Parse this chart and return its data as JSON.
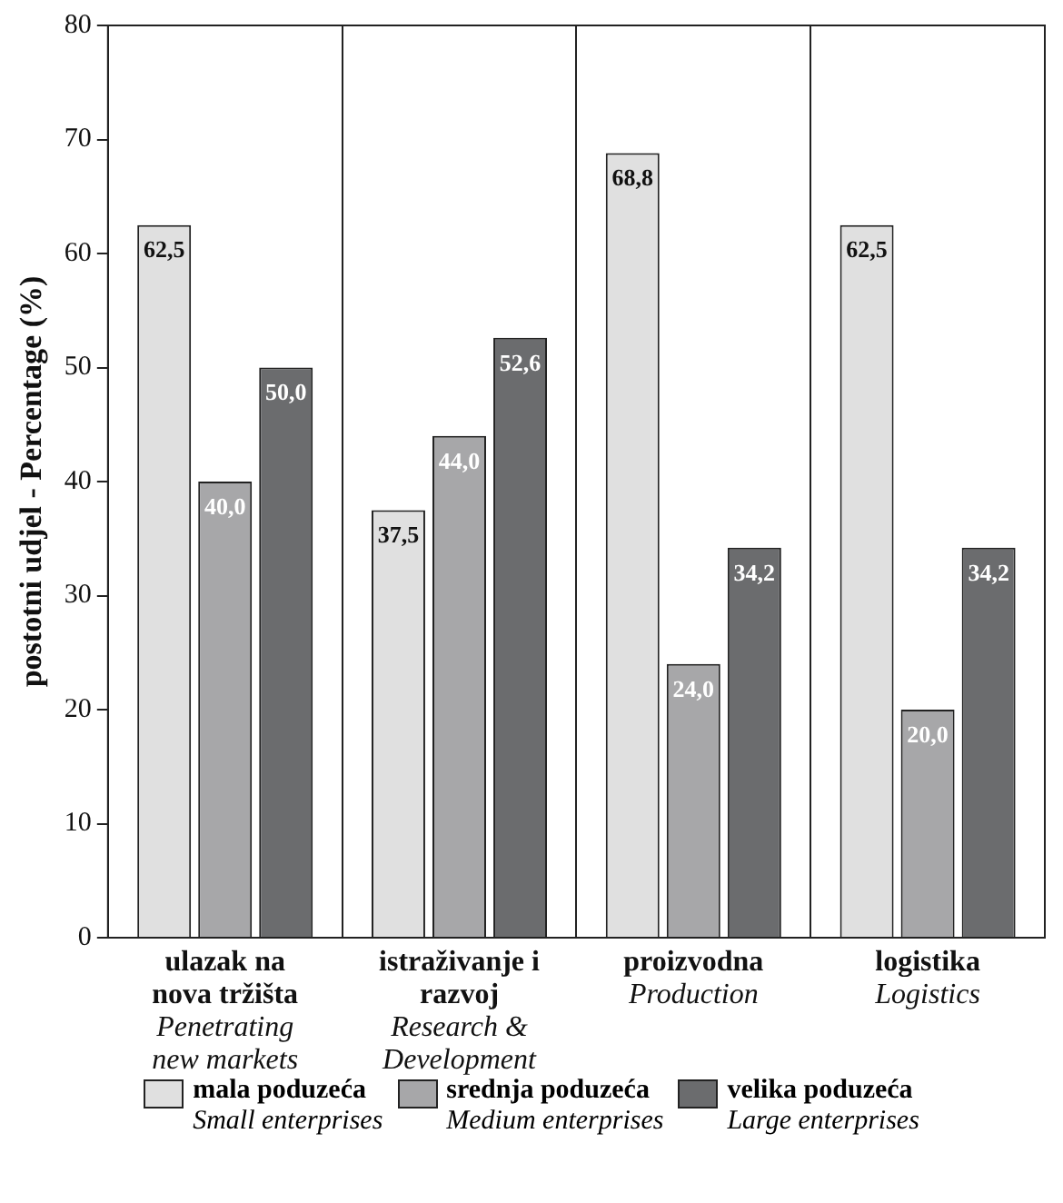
{
  "chart_data": {
    "type": "bar",
    "ylabel": "postotni udjel - Percentage (%)",
    "categories": [
      "ulazak na\nnova tržišta\nPenetrating\nnew markets",
      "istraživanje i\nrazvoj\nResearch &\nDevelopment",
      "proizvodna\nProduction",
      "logistika\nLogistics"
    ],
    "series": [
      {
        "name": "mala poduzeća\nSmall enterprises",
        "color": "#e0e0e0",
        "values": [
          62.5,
          37.5,
          68.8,
          62.5
        ],
        "value_labels": [
          "62,5",
          "37,5",
          "68,8",
          "62,5"
        ]
      },
      {
        "name": "srednja poduzeća\nMedium enterprises",
        "color": "#a7a7a9",
        "values": [
          40.0,
          44.0,
          24.0,
          20.0
        ],
        "value_labels": [
          "40,0",
          "44,0",
          "24,0",
          "20,0"
        ]
      },
      {
        "name": "velika poduzeća\nLarge enterprises",
        "color": "#6b6c6e",
        "values": [
          50.0,
          52.6,
          34.2,
          34.2
        ],
        "value_labels": [
          "50,0",
          "52,6",
          "34,2",
          "34,2"
        ]
      }
    ],
    "ylim": [
      0,
      80
    ],
    "yticks": [
      0,
      10,
      20,
      30,
      40,
      50,
      60,
      70,
      80
    ],
    "grid": "x",
    "legend": "bottom"
  }
}
